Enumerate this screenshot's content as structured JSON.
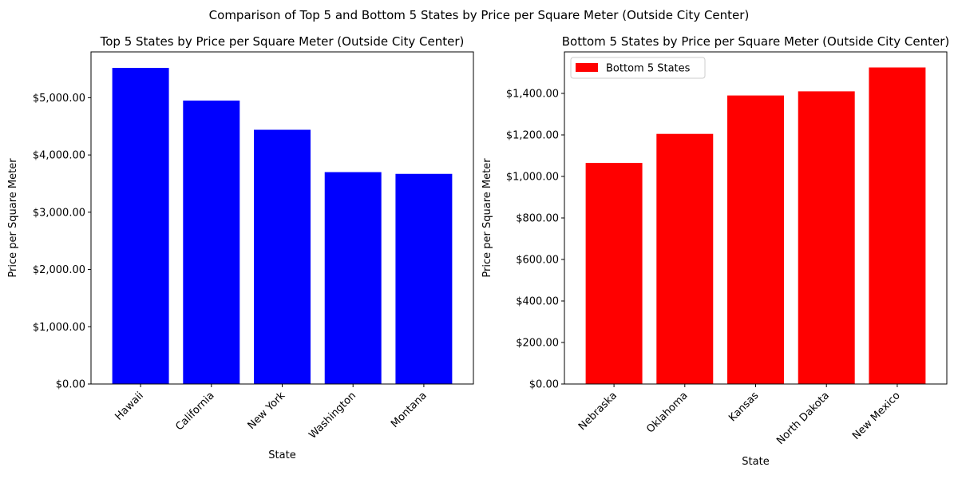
{
  "figure": {
    "suptitle": "Comparison of Top 5 and Bottom 5 States by Price per Square Meter (Outside City Center)"
  },
  "chart_data": [
    {
      "type": "bar",
      "title": "Top 5 States by Price per Square Meter (Outside City Center)",
      "xlabel": "State",
      "ylabel": "Price per Square Meter",
      "categories": [
        "Hawaii",
        "California",
        "New York",
        "Washington",
        "Montana"
      ],
      "values": [
        5520,
        4950,
        4440,
        3700,
        3670
      ],
      "color": "#0000ff",
      "ylim": [
        0,
        5800
      ],
      "yticks": [
        0,
        1000,
        2000,
        3000,
        4000,
        5000
      ],
      "ytick_labels": [
        "$0.00",
        "$1,000.00",
        "$2,000.00",
        "$3,000.00",
        "$4,000.00",
        "$5,000.00"
      ],
      "legend": null,
      "grid": false
    },
    {
      "type": "bar",
      "title": "Bottom 5 States by Price per Square Meter (Outside City Center)",
      "xlabel": "State",
      "ylabel": "Price per Square Meter",
      "categories": [
        "Nebraska",
        "Oklahoma",
        "Kansas",
        "North Dakota",
        "New Mexico"
      ],
      "values": [
        1065,
        1205,
        1390,
        1410,
        1525
      ],
      "color": "#ff0000",
      "ylim": [
        0,
        1600
      ],
      "yticks": [
        0,
        200,
        400,
        600,
        800,
        1000,
        1200,
        1400
      ],
      "ytick_labels": [
        "$0.00",
        "$200.00",
        "$400.00",
        "$600.00",
        "$800.00",
        "$1,000.00",
        "$1,200.00",
        "$1,400.00"
      ],
      "legend": {
        "label": "Bottom 5 States",
        "placement": "upper-left"
      },
      "grid": false
    }
  ]
}
